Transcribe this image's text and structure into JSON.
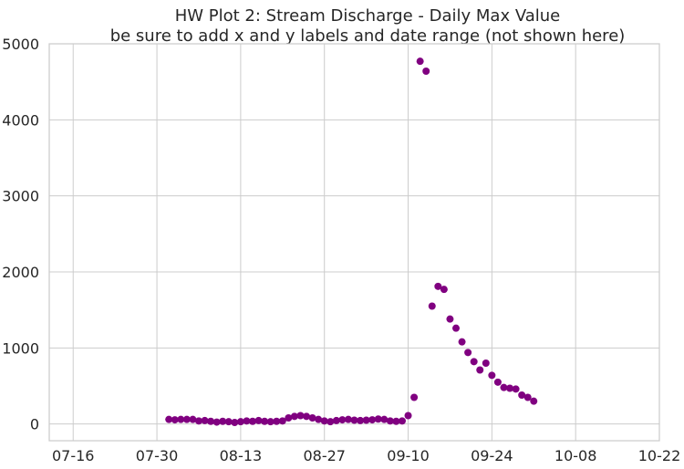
{
  "chart_data": {
    "type": "scatter",
    "title": "HW Plot 2: Stream Discharge - Daily Max Value",
    "subtitle": "be sure to add x and y labels and date range (not shown here)",
    "xlabel": "",
    "ylabel": "",
    "x_axis_type": "date",
    "xlim": [
      "2013-07-12",
      "2013-10-22"
    ],
    "ylim": [
      -220,
      5000
    ],
    "x_ticks": [
      "07-16",
      "07-30",
      "08-13",
      "08-27",
      "09-10",
      "09-24",
      "10-08",
      "10-22"
    ],
    "x_tick_dates": [
      "2013-07-16",
      "2013-07-30",
      "2013-08-13",
      "2013-08-27",
      "2013-09-10",
      "2013-09-24",
      "2013-10-08",
      "2013-10-22"
    ],
    "y_ticks": [
      0,
      1000,
      2000,
      3000,
      4000,
      5000
    ],
    "grid": true,
    "marker_color": "#800080",
    "series": [
      {
        "x": [
          "2013-08-01",
          "2013-08-02",
          "2013-08-03",
          "2013-08-04",
          "2013-08-05",
          "2013-08-06",
          "2013-08-07",
          "2013-08-08",
          "2013-08-09",
          "2013-08-10",
          "2013-08-11",
          "2013-08-12",
          "2013-08-13",
          "2013-08-14",
          "2013-08-15",
          "2013-08-16",
          "2013-08-17",
          "2013-08-18",
          "2013-08-19",
          "2013-08-20",
          "2013-08-21",
          "2013-08-22",
          "2013-08-23",
          "2013-08-24",
          "2013-08-25",
          "2013-08-26",
          "2013-08-27",
          "2013-08-28",
          "2013-08-29",
          "2013-08-30",
          "2013-08-31",
          "2013-09-01",
          "2013-09-02",
          "2013-09-03",
          "2013-09-04",
          "2013-09-05",
          "2013-09-06",
          "2013-09-07",
          "2013-09-08",
          "2013-09-09",
          "2013-09-10",
          "2013-09-11",
          "2013-09-12",
          "2013-09-13",
          "2013-09-14",
          "2013-09-15",
          "2013-09-16",
          "2013-09-17",
          "2013-09-18",
          "2013-09-19",
          "2013-09-20",
          "2013-09-21",
          "2013-09-22",
          "2013-09-23",
          "2013-09-24",
          "2013-09-25",
          "2013-09-26",
          "2013-09-27",
          "2013-09-28",
          "2013-09-29",
          "2013-09-30",
          "2013-10-01"
        ],
        "y": [
          60,
          55,
          60,
          60,
          60,
          40,
          45,
          35,
          25,
          35,
          30,
          20,
          30,
          40,
          35,
          45,
          35,
          30,
          35,
          40,
          80,
          100,
          110,
          100,
          80,
          60,
          40,
          30,
          45,
          55,
          60,
          50,
          45,
          50,
          55,
          65,
          60,
          40,
          35,
          40,
          110,
          350,
          4770,
          4640,
          1550,
          1810,
          1770,
          1380,
          1260,
          1080,
          940,
          820,
          710,
          800,
          640,
          550,
          480,
          470,
          460,
          380,
          350,
          300
        ]
      }
    ]
  }
}
